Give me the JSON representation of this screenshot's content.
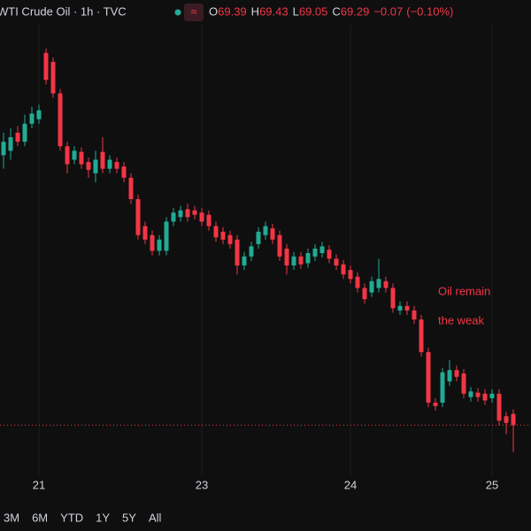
{
  "chart_data": {
    "type": "candlestick",
    "title": "WTI Crude Oil · 1h · TVC",
    "ohlc_labels": [
      "O",
      "H",
      "L",
      "C"
    ],
    "change": "−0.07",
    "change_pct": "(−0.10%)",
    "annotation": [
      "Oil remain",
      "the weak"
    ],
    "up_color": "#22ab94",
    "down_color": "#f23645",
    "ylim": [
      68.9,
      72.85
    ],
    "grid": true,
    "ranges": [
      "3M",
      "6M",
      "YTD",
      "1Y",
      "5Y",
      "All"
    ],
    "categories": [
      null,
      null,
      null,
      null,
      null,
      "21",
      null,
      null,
      null,
      null,
      null,
      null,
      null,
      null,
      null,
      null,
      null,
      null,
      null,
      null,
      null,
      null,
      null,
      null,
      null,
      null,
      null,
      null,
      "23",
      null,
      null,
      null,
      null,
      null,
      null,
      null,
      null,
      null,
      null,
      null,
      null,
      null,
      null,
      null,
      null,
      null,
      null,
      null,
      null,
      "24",
      null,
      null,
      null,
      null,
      null,
      null,
      null,
      null,
      null,
      null,
      null,
      null,
      null,
      null,
      null,
      null,
      null,
      null,
      null,
      "25",
      null,
      null,
      null
    ],
    "candles": [
      {
        "o": 71.69,
        "h": 71.89,
        "l": 71.57,
        "c": 71.81
      },
      {
        "o": 71.73,
        "h": 71.93,
        "l": 71.65,
        "c": 71.85
      },
      {
        "o": 71.89,
        "h": 71.95,
        "l": 71.77,
        "c": 71.81
      },
      {
        "o": 71.81,
        "h": 72.05,
        "l": 71.77,
        "c": 71.97
      },
      {
        "o": 71.97,
        "h": 72.12,
        "l": 71.93,
        "c": 72.06
      },
      {
        "o": 72.01,
        "h": 72.14,
        "l": 71.97,
        "c": 72.09
      },
      {
        "o": 72.6,
        "h": 72.64,
        "l": 72.32,
        "c": 72.36
      },
      {
        "o": 72.52,
        "h": 72.56,
        "l": 72.2,
        "c": 72.24
      },
      {
        "o": 72.24,
        "h": 72.28,
        "l": 71.73,
        "c": 71.77
      },
      {
        "o": 71.77,
        "h": 71.81,
        "l": 71.53,
        "c": 71.61
      },
      {
        "o": 71.65,
        "h": 71.77,
        "l": 71.61,
        "c": 71.73
      },
      {
        "o": 71.72,
        "h": 71.76,
        "l": 71.57,
        "c": 71.61
      },
      {
        "o": 71.63,
        "h": 71.67,
        "l": 71.49,
        "c": 71.56
      },
      {
        "o": 71.53,
        "h": 71.73,
        "l": 71.45,
        "c": 71.65
      },
      {
        "o": 71.72,
        "h": 71.85,
        "l": 71.53,
        "c": 71.57
      },
      {
        "o": 71.57,
        "h": 71.69,
        "l": 71.53,
        "c": 71.65
      },
      {
        "o": 71.63,
        "h": 71.67,
        "l": 71.53,
        "c": 71.57
      },
      {
        "o": 71.59,
        "h": 71.63,
        "l": 71.45,
        "c": 71.49
      },
      {
        "o": 71.49,
        "h": 71.53,
        "l": 71.26,
        "c": 71.3
      },
      {
        "o": 71.3,
        "h": 71.34,
        "l": 70.94,
        "c": 70.98
      },
      {
        "o": 71.06,
        "h": 71.1,
        "l": 70.9,
        "c": 70.94
      },
      {
        "o": 70.98,
        "h": 71.02,
        "l": 70.8,
        "c": 70.84
      },
      {
        "o": 70.84,
        "h": 70.98,
        "l": 70.8,
        "c": 70.94
      },
      {
        "o": 70.84,
        "h": 71.14,
        "l": 70.8,
        "c": 71.1
      },
      {
        "o": 71.1,
        "h": 71.22,
        "l": 71.06,
        "c": 71.18
      },
      {
        "o": 71.14,
        "h": 71.24,
        "l": 71.1,
        "c": 71.2
      },
      {
        "o": 71.21,
        "h": 71.26,
        "l": 71.1,
        "c": 71.14
      },
      {
        "o": 71.2,
        "h": 71.24,
        "l": 71.12,
        "c": 71.16
      },
      {
        "o": 71.18,
        "h": 71.22,
        "l": 71.06,
        "c": 71.1
      },
      {
        "o": 71.16,
        "h": 71.2,
        "l": 71.02,
        "c": 71.06
      },
      {
        "o": 71.06,
        "h": 71.1,
        "l": 70.92,
        "c": 70.96
      },
      {
        "o": 71.01,
        "h": 71.05,
        "l": 70.9,
        "c": 70.94
      },
      {
        "o": 70.98,
        "h": 71.02,
        "l": 70.86,
        "c": 70.9
      },
      {
        "o": 70.94,
        "h": 70.98,
        "l": 70.63,
        "c": 70.71
      },
      {
        "o": 70.71,
        "h": 70.83,
        "l": 70.67,
        "c": 70.79
      },
      {
        "o": 70.79,
        "h": 70.92,
        "l": 70.75,
        "c": 70.88
      },
      {
        "o": 70.9,
        "h": 71.05,
        "l": 70.86,
        "c": 71.01
      },
      {
        "o": 70.98,
        "h": 71.1,
        "l": 70.94,
        "c": 71.06
      },
      {
        "o": 71.04,
        "h": 71.08,
        "l": 70.9,
        "c": 70.94
      },
      {
        "o": 70.98,
        "h": 71.02,
        "l": 70.75,
        "c": 70.79
      },
      {
        "o": 70.86,
        "h": 70.9,
        "l": 70.63,
        "c": 70.71
      },
      {
        "o": 70.71,
        "h": 70.83,
        "l": 70.67,
        "c": 70.79
      },
      {
        "o": 70.79,
        "h": 70.83,
        "l": 70.68,
        "c": 70.72
      },
      {
        "o": 70.73,
        "h": 70.86,
        "l": 70.69,
        "c": 70.82
      },
      {
        "o": 70.79,
        "h": 70.9,
        "l": 70.75,
        "c": 70.86
      },
      {
        "o": 70.82,
        "h": 70.92,
        "l": 70.78,
        "c": 70.88
      },
      {
        "o": 70.85,
        "h": 70.89,
        "l": 70.73,
        "c": 70.77
      },
      {
        "o": 70.77,
        "h": 70.81,
        "l": 70.67,
        "c": 70.71
      },
      {
        "o": 70.72,
        "h": 70.76,
        "l": 70.59,
        "c": 70.63
      },
      {
        "o": 70.67,
        "h": 70.71,
        "l": 70.55,
        "c": 70.59
      },
      {
        "o": 70.61,
        "h": 70.65,
        "l": 70.47,
        "c": 70.51
      },
      {
        "o": 70.51,
        "h": 70.55,
        "l": 70.37,
        "c": 70.41
      },
      {
        "o": 70.47,
        "h": 70.61,
        "l": 70.43,
        "c": 70.57
      },
      {
        "o": 70.51,
        "h": 70.77,
        "l": 70.47,
        "c": 70.59
      },
      {
        "o": 70.57,
        "h": 70.61,
        "l": 70.47,
        "c": 70.51
      },
      {
        "o": 70.51,
        "h": 70.55,
        "l": 70.29,
        "c": 70.33
      },
      {
        "o": 70.31,
        "h": 70.39,
        "l": 70.27,
        "c": 70.35
      },
      {
        "o": 70.35,
        "h": 70.39,
        "l": 70.27,
        "c": 70.31
      },
      {
        "o": 70.31,
        "h": 70.35,
        "l": 70.19,
        "c": 70.23
      },
      {
        "o": 70.23,
        "h": 70.27,
        "l": 69.9,
        "c": 69.94
      },
      {
        "o": 69.94,
        "h": 69.98,
        "l": 69.45,
        "c": 69.49
      },
      {
        "o": 69.49,
        "h": 69.53,
        "l": 69.42,
        "c": 69.46
      },
      {
        "o": 69.49,
        "h": 69.8,
        "l": 69.45,
        "c": 69.76
      },
      {
        "o": 69.68,
        "h": 69.87,
        "l": 69.64,
        "c": 69.78
      },
      {
        "o": 69.78,
        "h": 69.82,
        "l": 69.68,
        "c": 69.72
      },
      {
        "o": 69.75,
        "h": 69.79,
        "l": 69.53,
        "c": 69.57
      },
      {
        "o": 69.54,
        "h": 69.63,
        "l": 69.5,
        "c": 69.59
      },
      {
        "o": 69.58,
        "h": 69.62,
        "l": 69.5,
        "c": 69.54
      },
      {
        "o": 69.57,
        "h": 69.61,
        "l": 69.47,
        "c": 69.51
      },
      {
        "o": 69.53,
        "h": 69.61,
        "l": 69.49,
        "c": 69.57
      },
      {
        "o": 69.57,
        "h": 69.61,
        "l": 69.29,
        "c": 69.33
      },
      {
        "o": 69.37,
        "h": 69.41,
        "l": 69.21,
        "c": 69.31
      },
      {
        "o": 69.39,
        "h": 69.43,
        "l": 69.05,
        "c": 69.29
      }
    ]
  }
}
